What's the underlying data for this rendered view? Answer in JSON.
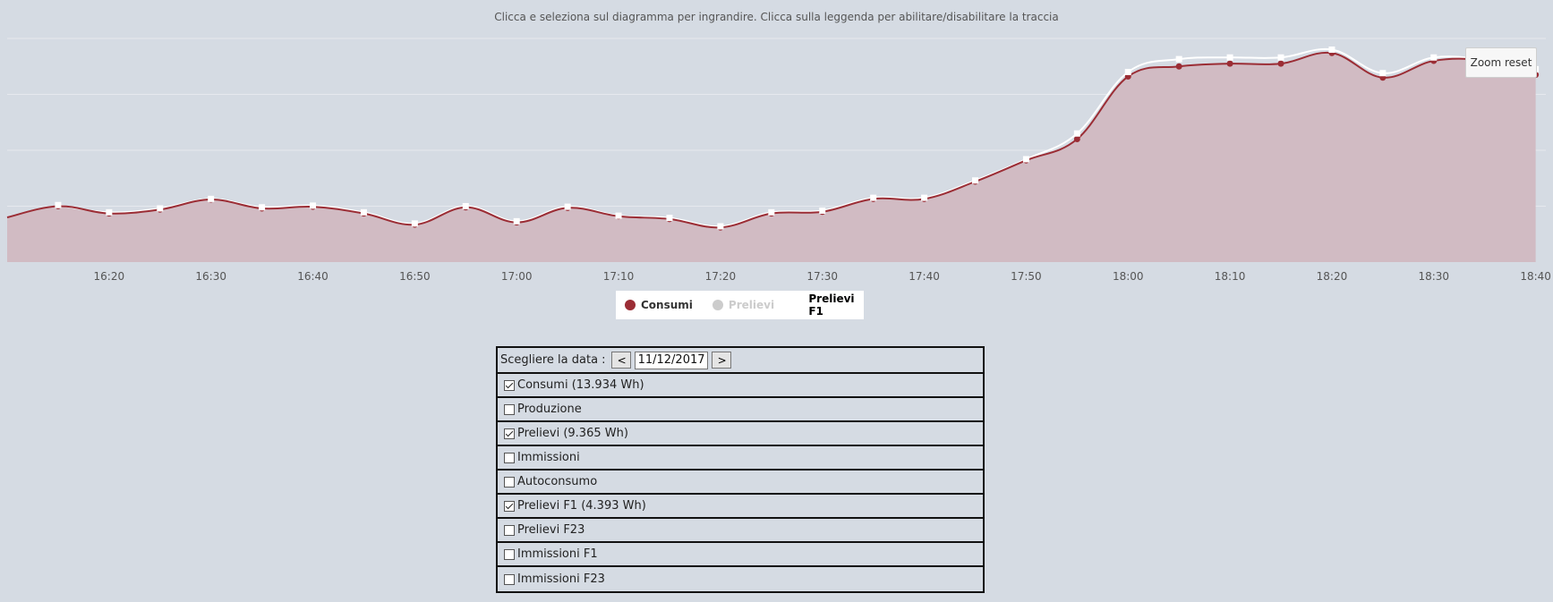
{
  "subtitle": "Clicca e seleziona sul diagramma per ingrandire. Clicca sulla leggenda per abilitare/disabilitare la traccia",
  "zoom_reset_label": "Zoom reset",
  "legend": [
    {
      "label": "Consumi",
      "color": "#9b2d35",
      "state": "visible"
    },
    {
      "label": "Prelievi",
      "color": "#cccccc",
      "state": "hidden"
    },
    {
      "label": "Prelievi F1",
      "color": "none",
      "state": "visible"
    }
  ],
  "panel": {
    "date_label": "Scegliere la data :",
    "prev_label": "<",
    "next_label": ">",
    "date_value": "11/12/2017",
    "options": [
      {
        "label": "Consumi (13.934 Wh)",
        "checked": true
      },
      {
        "label": "Produzione",
        "checked": false
      },
      {
        "label": "Prelievi (9.365 Wh)",
        "checked": true
      },
      {
        "label": "Immissioni",
        "checked": false
      },
      {
        "label": "Autoconsumo",
        "checked": false
      },
      {
        "label": "Prelievi F1 (4.393 Wh)",
        "checked": true
      },
      {
        "label": "Prelievi F23",
        "checked": false
      },
      {
        "label": "Immissioni F1",
        "checked": false
      },
      {
        "label": "Immissioni F23",
        "checked": false
      }
    ]
  },
  "chart_data": {
    "type": "area",
    "title": "",
    "xlabel": "",
    "ylabel": "",
    "x_ticks": [
      "16:20",
      "16:30",
      "16:40",
      "16:50",
      "17:00",
      "17:10",
      "17:20",
      "17:30",
      "17:40",
      "17:50",
      "18:00",
      "18:10",
      "18:20",
      "18:30",
      "18:40"
    ],
    "x_range_minutes": [
      970,
      1121
    ],
    "y_range": [
      0,
      4
    ],
    "grid": "horizontal",
    "series": [
      {
        "name": "Consumi",
        "color": "#9b2d35",
        "fill": "#d1bbc3",
        "x": [
          "16:10",
          "16:15",
          "16:20",
          "16:25",
          "16:30",
          "16:35",
          "16:40",
          "16:45",
          "16:50",
          "16:55",
          "17:00",
          "17:05",
          "17:10",
          "17:15",
          "17:20",
          "17:25",
          "17:30",
          "17:35",
          "17:40",
          "17:45",
          "17:50",
          "17:55",
          "18:00",
          "18:05",
          "18:10",
          "18:15",
          "18:20",
          "18:25",
          "18:30",
          "18:35",
          "18:40"
        ],
        "values": [
          0.8,
          1.0,
          0.87,
          0.94,
          1.12,
          0.96,
          0.99,
          0.87,
          0.67,
          0.98,
          0.71,
          0.97,
          0.82,
          0.77,
          0.62,
          0.87,
          0.9,
          1.13,
          1.13,
          1.44,
          1.82,
          2.2,
          3.32,
          3.5,
          3.55,
          3.55,
          3.74,
          3.3,
          3.6,
          3.6,
          3.35
        ]
      },
      {
        "name": "Prelievi F1",
        "color": "#ffffff",
        "x": [
          "16:15",
          "16:20",
          "16:25",
          "16:30",
          "16:35",
          "16:40",
          "16:45",
          "16:50",
          "16:55",
          "17:00",
          "17:05",
          "17:10",
          "17:15",
          "17:20",
          "17:25",
          "17:30",
          "17:35",
          "17:40",
          "17:45",
          "17:50",
          "17:55",
          "18:00",
          "18:05",
          "18:10",
          "18:15",
          "18:20",
          "18:25",
          "18:30",
          "18:35",
          "18:40"
        ],
        "values": [
          1.02,
          0.89,
          0.96,
          1.13,
          0.98,
          1.01,
          0.89,
          0.69,
          1.0,
          0.73,
          0.99,
          0.83,
          0.79,
          0.64,
          0.89,
          0.92,
          1.15,
          1.15,
          1.46,
          1.84,
          2.3,
          3.4,
          3.63,
          3.66,
          3.66,
          3.8,
          3.38,
          3.66,
          3.62,
          3.45
        ]
      }
    ]
  }
}
